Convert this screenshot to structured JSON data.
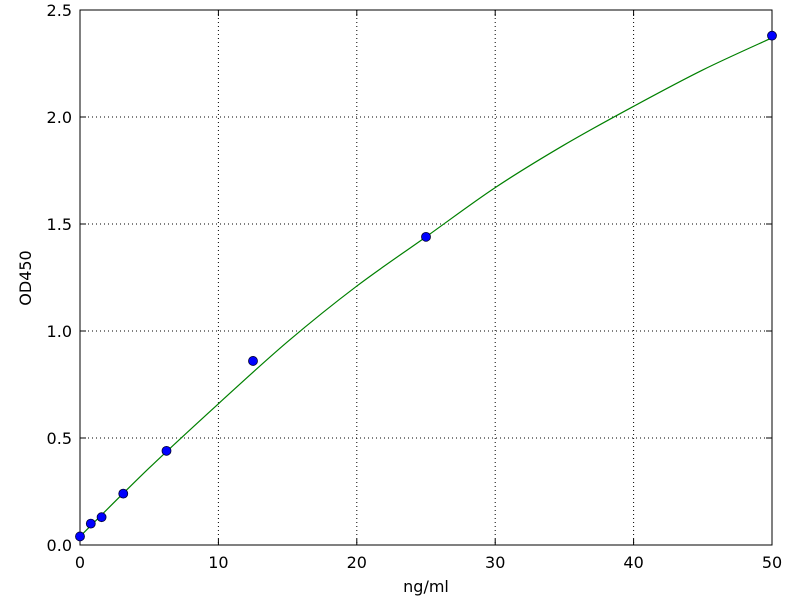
{
  "chart_data": {
    "type": "scatter",
    "title": "",
    "xlabel": "ng/ml",
    "ylabel": "OD450",
    "xlim": [
      0,
      50
    ],
    "ylim": [
      0,
      2.5
    ],
    "xticks": [
      "0",
      "10",
      "20",
      "30",
      "40",
      "50"
    ],
    "yticks": [
      "0.0",
      "0.5",
      "1.0",
      "1.5",
      "2.0",
      "2.5"
    ],
    "grid": true,
    "points": {
      "color": "#0000ff",
      "x": [
        0,
        0.78,
        1.56,
        3.125,
        6.25,
        12.5,
        25,
        50
      ],
      "y": [
        0.04,
        0.1,
        0.13,
        0.24,
        0.44,
        0.86,
        1.44,
        2.38
      ]
    },
    "fit_curve": {
      "color": "#008000",
      "x": [
        0,
        5,
        10,
        15,
        20,
        25,
        30,
        35,
        40,
        45,
        50
      ],
      "y": [
        0.04,
        0.36,
        0.66,
        0.95,
        1.21,
        1.44,
        1.67,
        1.87,
        2.05,
        2.22,
        2.37
      ]
    }
  }
}
